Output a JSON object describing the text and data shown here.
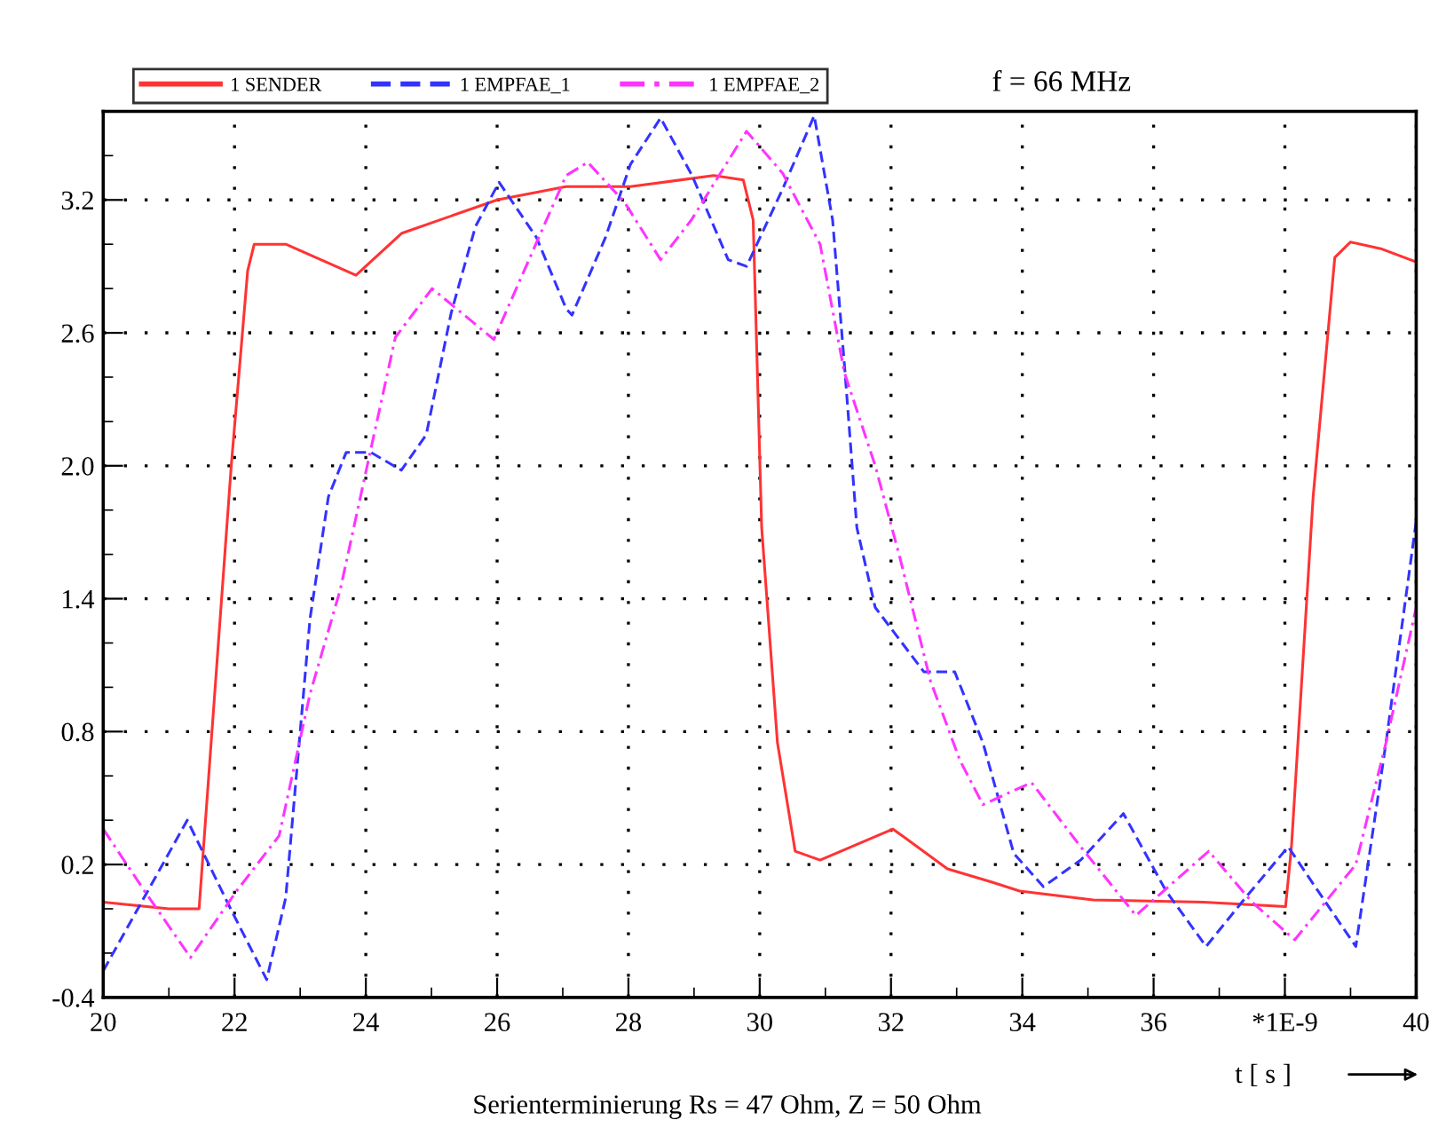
{
  "chart_data": {
    "type": "line",
    "xlabel": "t [ s ]",
    "annotations": [
      "f = 66 MHz",
      "Serienterminierung Rs = 47 Ohm, Z = 50 Ohm"
    ],
    "xlim": [
      20,
      40
    ],
    "xticks": [
      20,
      22,
      24,
      26,
      28,
      30,
      32,
      34,
      36,
      {
        "value": 38,
        "label": "*1E-9"
      },
      40
    ],
    "ylim": [
      -0.4,
      3.6
    ],
    "yticks": [
      -0.4,
      0.2,
      0.8,
      1.4,
      {
        "value": 2.0,
        "label": "2.0"
      },
      2.6,
      3.2
    ],
    "grid": true,
    "legend": "top",
    "marker": "none",
    "series": [
      {
        "name": "1 SENDER",
        "color": "#ff3333",
        "line_style": "solid",
        "x": [
          20,
          21,
          21.46,
          21.95,
          22.2,
          22.3,
          22.78,
          23.85,
          24.55,
          26.0,
          27.05,
          28.03,
          29.3,
          29.75,
          29.9,
          30.03,
          30.27,
          30.54,
          30.92,
          32.03,
          32.86,
          33.54,
          33.96,
          35.08,
          36.76,
          38.01,
          38.1,
          38.43,
          38.76,
          39.0,
          39.46,
          40.0
        ],
        "values": [
          0.03,
          0.0,
          0.0,
          2.0,
          2.88,
          3.0,
          3.0,
          2.86,
          3.05,
          3.2,
          3.26,
          3.26,
          3.31,
          3.29,
          3.11,
          1.72,
          0.75,
          0.26,
          0.22,
          0.36,
          0.18,
          0.12,
          0.08,
          0.04,
          0.03,
          0.01,
          0.28,
          1.86,
          2.94,
          3.01,
          2.98,
          2.92
        ]
      },
      {
        "name": "1 EMPFAE_1",
        "color": "#3333ff",
        "line_style": "dashed",
        "x": [
          20,
          21.28,
          21.94,
          22.49,
          22.78,
          23.15,
          23.43,
          23.7,
          24.08,
          24.54,
          24.92,
          25.3,
          25.67,
          26.03,
          26.6,
          27.05,
          27.14,
          27.65,
          28.03,
          28.49,
          28.97,
          29.52,
          29.8,
          30.35,
          30.83,
          31.11,
          31.3,
          31.48,
          31.76,
          32.5,
          32.97,
          33.4,
          33.87,
          34.32,
          34.89,
          35.54,
          36.19,
          36.8,
          37.4,
          38.05,
          38.62,
          39.08,
          39.54,
          40.0
        ],
        "values": [
          -0.28,
          0.4,
          0.0,
          -0.32,
          0.05,
          1.31,
          1.86,
          2.06,
          2.06,
          1.98,
          2.14,
          2.69,
          3.08,
          3.28,
          3.03,
          2.71,
          2.68,
          3.03,
          3.36,
          3.57,
          3.31,
          2.93,
          2.9,
          3.25,
          3.58,
          3.11,
          2.42,
          1.72,
          1.36,
          1.07,
          1.07,
          0.75,
          0.25,
          0.1,
          0.22,
          0.43,
          0.08,
          -0.17,
          0.05,
          0.28,
          0.03,
          -0.17,
          0.75,
          1.75
        ]
      },
      {
        "name": "1 EMPFAE_2",
        "color": "#ff33ff",
        "line_style": "dashdot",
        "x": [
          20,
          20.63,
          21.33,
          22.03,
          22.68,
          23.15,
          23.61,
          24.08,
          24.45,
          25.01,
          25.95,
          27.05,
          27.38,
          27.94,
          28.49,
          28.96,
          29.8,
          30.35,
          30.92,
          31.29,
          31.76,
          32.14,
          32.6,
          33.05,
          33.4,
          34.14,
          34.89,
          35.73,
          36.84,
          37.5,
          38.15,
          39.08,
          39.54,
          40.0
        ],
        "values": [
          0.36,
          0.08,
          -0.22,
          0.08,
          0.33,
          0.97,
          1.44,
          2.08,
          2.58,
          2.8,
          2.57,
          3.31,
          3.37,
          3.19,
          2.93,
          3.11,
          3.51,
          3.32,
          3.0,
          2.42,
          2.0,
          1.58,
          1.03,
          0.67,
          0.47,
          0.57,
          0.28,
          -0.03,
          0.26,
          0.03,
          -0.14,
          0.2,
          0.75,
          1.36
        ]
      }
    ]
  }
}
